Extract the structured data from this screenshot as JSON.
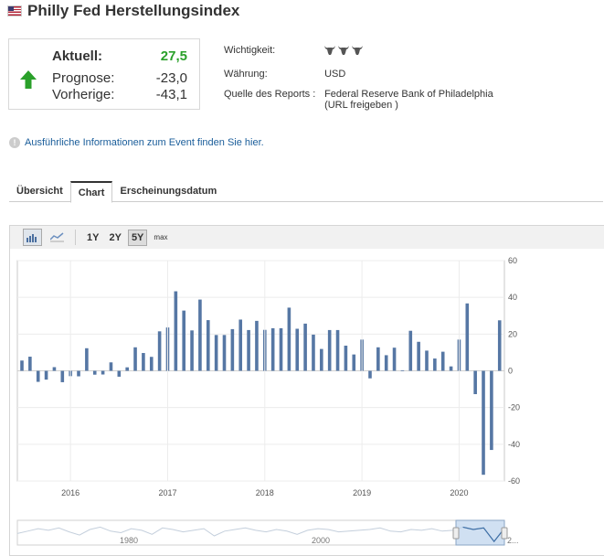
{
  "page": {
    "title": "Philly Fed Herstellungsindex",
    "flag_icon": "us-flag-icon"
  },
  "summary": {
    "actual_label": "Aktuell:",
    "actual_value": "27,5",
    "forecast_label": "Prognose:",
    "forecast_value": "-23,0",
    "previous_label": "Vorherige:",
    "previous_value": "-43,1",
    "trend_icon": "arrow-up-icon",
    "trend_color": "#2aa02a"
  },
  "meta": {
    "importance_label": "Wichtigkeit:",
    "importance_level": 3,
    "currency_label": "Währung:",
    "currency_value": "USD",
    "source_label": "Quelle des Reports :",
    "source_value": "Federal Reserve Bank of Philadelphia",
    "source_sub": "(URL freigeben )"
  },
  "info_link": "Ausführliche Informationen zum Event finden Sie hier.",
  "tabs": [
    {
      "label": "Übersicht",
      "active": false
    },
    {
      "label": "Chart",
      "active": true
    },
    {
      "label": "Erscheinungsdatum",
      "active": false
    }
  ],
  "toolbar": {
    "bar_icon": "bar-chart-icon",
    "line_icon": "line-chart-icon",
    "ranges": [
      "1Y",
      "2Y",
      "5Y",
      "max"
    ],
    "selected_range": "5Y"
  },
  "navigator": {
    "labels": [
      "1980",
      "2000",
      "2..."
    ]
  },
  "chart_data": {
    "type": "bar",
    "bar_color": "#5677a4",
    "ylim": [
      -60,
      60
    ],
    "yticks": [
      60,
      40,
      20,
      0,
      -20,
      -40,
      -60
    ],
    "xticks": [
      "2016",
      "2017",
      "2018",
      "2019",
      "2020"
    ],
    "grid": true,
    "values": [
      5.6,
      7.7,
      -6.0,
      -4.8,
      2.0,
      -6.2,
      -2.9,
      -3.0,
      12.3,
      -2.1,
      -2.0,
      4.6,
      -3.2,
      1.9,
      12.8,
      9.7,
      7.6,
      21.5,
      23.6,
      43.3,
      32.8,
      22.0,
      38.8,
      27.6,
      19.5,
      19.5,
      22.7,
      27.9,
      22.2,
      27.2,
      22.3,
      23.2,
      23.2,
      34.4,
      22.9,
      25.7,
      19.7,
      11.9,
      22.2,
      22.2,
      13.7,
      8.9,
      17.0,
      -4.1,
      12.8,
      8.5,
      12.6,
      0.3,
      21.8,
      15.8,
      11.0,
      6.7,
      10.4,
      2.4,
      17.0,
      36.7,
      -12.7,
      -56.6,
      -43.1,
      27.5
    ],
    "navigator": {
      "ylim": [
        -60,
        60
      ],
      "series": [
        -5,
        10,
        25,
        15,
        30,
        5,
        -15,
        20,
        35,
        10,
        0,
        25,
        15,
        -10,
        30,
        20,
        5,
        15,
        25,
        -20,
        10,
        20,
        30,
        15,
        5,
        20,
        10,
        -10,
        15,
        25,
        20,
        5,
        10,
        15,
        20,
        30,
        10,
        5,
        20,
        15,
        25,
        10,
        15,
        35,
        20,
        30,
        -55,
        27
      ]
    }
  }
}
